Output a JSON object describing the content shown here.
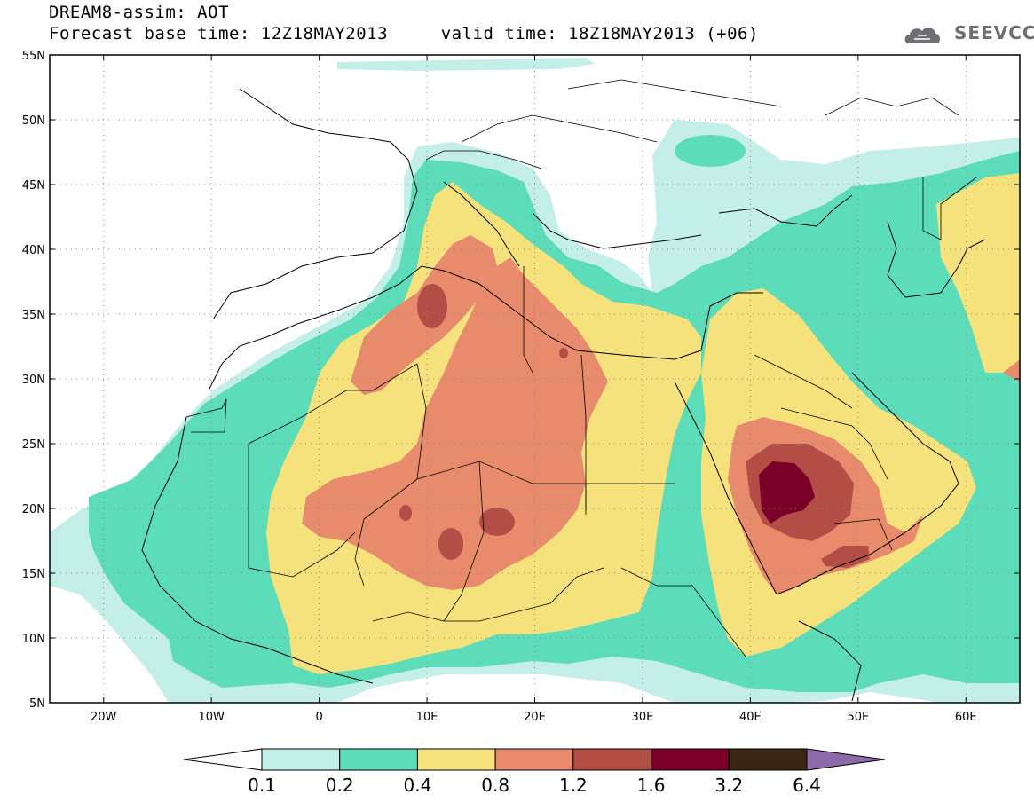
{
  "header": {
    "title_line1": "DREAM8-assim: AOT",
    "title_line2": "Forecast base time: 12Z18MAY2013     valid time: 18Z18MAY2013 (+06)",
    "logo_text": "SEEVCCC"
  },
  "map": {
    "lon_range": [
      -25,
      65
    ],
    "lat_range": [
      5,
      55
    ],
    "lat_ticks": [
      {
        "value": 55,
        "label": "55N"
      },
      {
        "value": 50,
        "label": "50N"
      },
      {
        "value": 45,
        "label": "45N"
      },
      {
        "value": 40,
        "label": "40N"
      },
      {
        "value": 35,
        "label": "35N"
      },
      {
        "value": 30,
        "label": "30N"
      },
      {
        "value": 25,
        "label": "25N"
      },
      {
        "value": 20,
        "label": "20N"
      },
      {
        "value": 15,
        "label": "15N"
      },
      {
        "value": 10,
        "label": "10N"
      },
      {
        "value": 5,
        "label": "5N"
      }
    ],
    "lon_ticks": [
      {
        "value": -20,
        "label": "20W"
      },
      {
        "value": -10,
        "label": "10W"
      },
      {
        "value": 0,
        "label": "0"
      },
      {
        "value": 10,
        "label": "10E"
      },
      {
        "value": 20,
        "label": "20E"
      },
      {
        "value": 30,
        "label": "30E"
      },
      {
        "value": 40,
        "label": "40E"
      },
      {
        "value": 50,
        "label": "50E"
      },
      {
        "value": 60,
        "label": "60E"
      }
    ],
    "grid": "dotted"
  },
  "colorbar": {
    "under_color": "#ffffff",
    "over_color": "#8d6aa8",
    "bins": [
      {
        "color": "#c4efe8"
      },
      {
        "color": "#5cdcb8"
      },
      {
        "color": "#f5e27c"
      },
      {
        "color": "#e78b6c"
      },
      {
        "color": "#b24e45"
      },
      {
        "color": "#7a0029"
      },
      {
        "color": "#3b2616"
      }
    ],
    "labels": [
      "0.1",
      "0.2",
      "0.4",
      "0.8",
      "1.2",
      "1.6",
      "3.2",
      "6.4"
    ]
  }
}
